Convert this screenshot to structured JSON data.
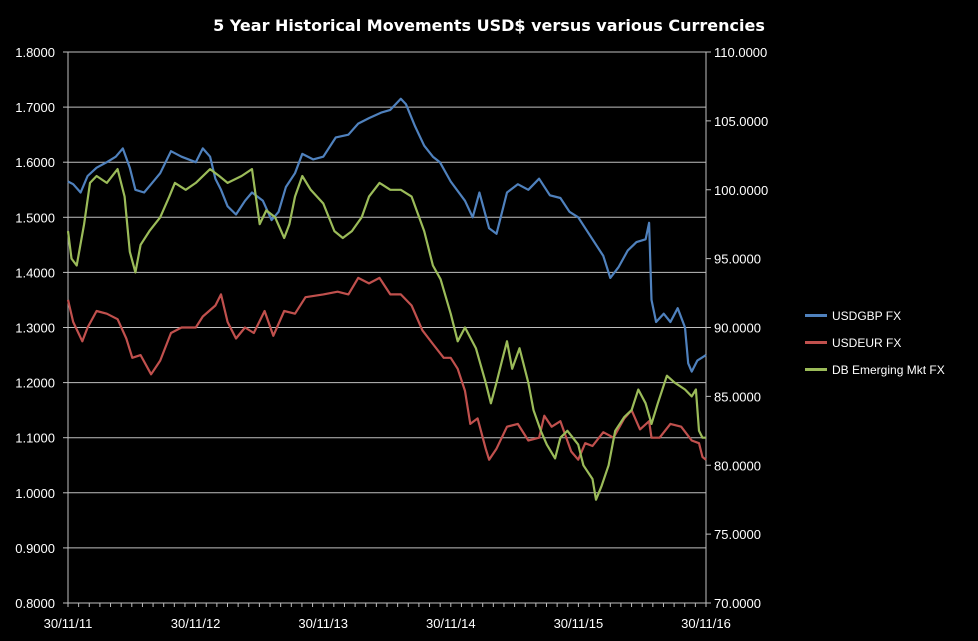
{
  "chart_data": {
    "type": "line",
    "title": "5 Year Historical Movements USD$ versus various Currencies",
    "x_tick_labels": [
      "30/11/11",
      "30/11/12",
      "30/11/13",
      "30/11/14",
      "30/11/15",
      "30/11/16"
    ],
    "y_left": {
      "ticks": [
        "0.8000",
        "0.9000",
        "1.0000",
        "1.1000",
        "1.2000",
        "1.3000",
        "1.4000",
        "1.5000",
        "1.6000",
        "1.7000",
        "1.8000"
      ],
      "range": [
        0.8,
        1.8
      ]
    },
    "y_right": {
      "ticks": [
        "70.0000",
        "75.0000",
        "80.0000",
        "85.0000",
        "90.0000",
        "95.0000",
        "100.0000",
        "105.0000",
        "110.0000"
      ],
      "range": [
        70,
        110
      ]
    },
    "grid": true,
    "legend_position": "right",
    "series": [
      {
        "name": "USDGBP FX",
        "axis": "left",
        "color": "#4f81bd",
        "points": [
          [
            "2011-11-30",
            1.565
          ],
          [
            "2011-12-15",
            1.56
          ],
          [
            "2012-01-05",
            1.545
          ],
          [
            "2012-01-25",
            1.575
          ],
          [
            "2012-02-20",
            1.59
          ],
          [
            "2012-03-20",
            1.6
          ],
          [
            "2012-04-15",
            1.61
          ],
          [
            "2012-05-05",
            1.625
          ],
          [
            "2012-05-25",
            1.59
          ],
          [
            "2012-06-10",
            1.55
          ],
          [
            "2012-07-05",
            1.545
          ],
          [
            "2012-07-25",
            1.56
          ],
          [
            "2012-08-20",
            1.58
          ],
          [
            "2012-09-20",
            1.62
          ],
          [
            "2012-10-20",
            1.61
          ],
          [
            "2012-11-30",
            1.6
          ],
          [
            "2012-12-20",
            1.625
          ],
          [
            "2013-01-10",
            1.61
          ],
          [
            "2013-01-25",
            1.57
          ],
          [
            "2013-02-10",
            1.55
          ],
          [
            "2013-03-01",
            1.52
          ],
          [
            "2013-03-25",
            1.505
          ],
          [
            "2013-04-20",
            1.53
          ],
          [
            "2013-05-10",
            1.545
          ],
          [
            "2013-06-10",
            1.53
          ],
          [
            "2013-07-05",
            1.495
          ],
          [
            "2013-07-25",
            1.51
          ],
          [
            "2013-08-15",
            1.555
          ],
          [
            "2013-09-10",
            1.58
          ],
          [
            "2013-10-01",
            1.615
          ],
          [
            "2013-11-01",
            1.605
          ],
          [
            "2013-11-30",
            1.61
          ],
          [
            "2014-01-05",
            1.645
          ],
          [
            "2014-02-10",
            1.65
          ],
          [
            "2014-03-10",
            1.67
          ],
          [
            "2014-04-10",
            1.68
          ],
          [
            "2014-05-15",
            1.69
          ],
          [
            "2014-06-10",
            1.695
          ],
          [
            "2014-07-10",
            1.715
          ],
          [
            "2014-07-25",
            1.705
          ],
          [
            "2014-08-20",
            1.665
          ],
          [
            "2014-09-15",
            1.63
          ],
          [
            "2014-10-10",
            1.61
          ],
          [
            "2014-10-30",
            1.6
          ],
          [
            "2014-11-30",
            1.565
          ],
          [
            "2015-01-10",
            1.53
          ],
          [
            "2015-02-01",
            1.5
          ],
          [
            "2015-02-20",
            1.545
          ],
          [
            "2015-03-20",
            1.48
          ],
          [
            "2015-04-10",
            1.47
          ],
          [
            "2015-05-10",
            1.545
          ],
          [
            "2015-06-10",
            1.56
          ],
          [
            "2015-07-10",
            1.55
          ],
          [
            "2015-08-10",
            1.57
          ],
          [
            "2015-09-10",
            1.54
          ],
          [
            "2015-10-10",
            1.535
          ],
          [
            "2015-11-05",
            1.51
          ],
          [
            "2015-11-30",
            1.5
          ],
          [
            "2016-01-10",
            1.46
          ],
          [
            "2016-02-10",
            1.43
          ],
          [
            "2016-03-01",
            1.39
          ],
          [
            "2016-03-25",
            1.41
          ],
          [
            "2016-04-20",
            1.44
          ],
          [
            "2016-05-15",
            1.455
          ],
          [
            "2016-06-10",
            1.46
          ],
          [
            "2016-06-20",
            1.49
          ],
          [
            "2016-06-27",
            1.35
          ],
          [
            "2016-07-10",
            1.31
          ],
          [
            "2016-08-01",
            1.325
          ],
          [
            "2016-08-20",
            1.31
          ],
          [
            "2016-09-10",
            1.335
          ],
          [
            "2016-10-01",
            1.3
          ],
          [
            "2016-10-10",
            1.235
          ],
          [
            "2016-10-20",
            1.22
          ],
          [
            "2016-11-05",
            1.24
          ],
          [
            "2016-11-30",
            1.25
          ]
        ]
      },
      {
        "name": "USDEUR FX",
        "axis": "left",
        "color": "#c0504d",
        "points": [
          [
            "2011-11-30",
            1.35
          ],
          [
            "2011-12-15",
            1.31
          ],
          [
            "2012-01-10",
            1.275
          ],
          [
            "2012-01-25",
            1.3
          ],
          [
            "2012-02-20",
            1.33
          ],
          [
            "2012-03-20",
            1.325
          ],
          [
            "2012-04-20",
            1.315
          ],
          [
            "2012-05-15",
            1.28
          ],
          [
            "2012-06-01",
            1.245
          ],
          [
            "2012-06-25",
            1.25
          ],
          [
            "2012-07-25",
            1.215
          ],
          [
            "2012-08-20",
            1.24
          ],
          [
            "2012-09-20",
            1.29
          ],
          [
            "2012-10-20",
            1.3
          ],
          [
            "2012-11-30",
            1.3
          ],
          [
            "2012-12-20",
            1.32
          ],
          [
            "2013-01-25",
            1.34
          ],
          [
            "2013-02-10",
            1.36
          ],
          [
            "2013-03-01",
            1.31
          ],
          [
            "2013-03-25",
            1.28
          ],
          [
            "2013-04-20",
            1.3
          ],
          [
            "2013-05-15",
            1.29
          ],
          [
            "2013-06-15",
            1.33
          ],
          [
            "2013-07-10",
            1.285
          ],
          [
            "2013-08-10",
            1.33
          ],
          [
            "2013-09-10",
            1.325
          ],
          [
            "2013-10-10",
            1.355
          ],
          [
            "2013-11-30",
            1.36
          ],
          [
            "2014-01-10",
            1.365
          ],
          [
            "2014-02-10",
            1.36
          ],
          [
            "2014-03-10",
            1.39
          ],
          [
            "2014-04-10",
            1.38
          ],
          [
            "2014-05-10",
            1.39
          ],
          [
            "2014-06-10",
            1.36
          ],
          [
            "2014-07-10",
            1.36
          ],
          [
            "2014-08-10",
            1.34
          ],
          [
            "2014-09-10",
            1.295
          ],
          [
            "2014-10-10",
            1.27
          ],
          [
            "2014-11-10",
            1.245
          ],
          [
            "2014-11-30",
            1.245
          ],
          [
            "2014-12-20",
            1.225
          ],
          [
            "2015-01-10",
            1.185
          ],
          [
            "2015-01-25",
            1.125
          ],
          [
            "2015-02-15",
            1.135
          ],
          [
            "2015-03-10",
            1.08
          ],
          [
            "2015-03-20",
            1.06
          ],
          [
            "2015-04-10",
            1.08
          ],
          [
            "2015-05-10",
            1.12
          ],
          [
            "2015-06-10",
            1.125
          ],
          [
            "2015-07-10",
            1.095
          ],
          [
            "2015-08-10",
            1.1
          ],
          [
            "2015-08-25",
            1.14
          ],
          [
            "2015-09-15",
            1.12
          ],
          [
            "2015-10-10",
            1.13
          ],
          [
            "2015-11-10",
            1.075
          ],
          [
            "2015-11-30",
            1.06
          ],
          [
            "2015-12-20",
            1.09
          ],
          [
            "2016-01-10",
            1.085
          ],
          [
            "2016-02-10",
            1.11
          ],
          [
            "2016-03-10",
            1.1
          ],
          [
            "2016-04-10",
            1.135
          ],
          [
            "2016-05-01",
            1.15
          ],
          [
            "2016-05-25",
            1.115
          ],
          [
            "2016-06-20",
            1.13
          ],
          [
            "2016-06-27",
            1.1
          ],
          [
            "2016-07-20",
            1.1
          ],
          [
            "2016-08-20",
            1.125
          ],
          [
            "2016-09-20",
            1.12
          ],
          [
            "2016-10-20",
            1.095
          ],
          [
            "2016-11-10",
            1.09
          ],
          [
            "2016-11-20",
            1.065
          ],
          [
            "2016-11-30",
            1.06
          ]
        ]
      },
      {
        "name": "DB Emerging Mkt FX",
        "axis": "right",
        "color": "#9bbb59",
        "points": [
          [
            "2011-11-30",
            97.0
          ],
          [
            "2011-12-10",
            95.0
          ],
          [
            "2011-12-25",
            94.5
          ],
          [
            "2012-01-15",
            97.5
          ],
          [
            "2012-02-01",
            100.5
          ],
          [
            "2012-02-20",
            101.0
          ],
          [
            "2012-03-20",
            100.5
          ],
          [
            "2012-04-20",
            101.5
          ],
          [
            "2012-05-10",
            99.5
          ],
          [
            "2012-05-25",
            95.5
          ],
          [
            "2012-06-10",
            94.0
          ],
          [
            "2012-06-25",
            96.0
          ],
          [
            "2012-07-20",
            97.0
          ],
          [
            "2012-08-20",
            98.0
          ],
          [
            "2012-09-15",
            99.5
          ],
          [
            "2012-10-01",
            100.5
          ],
          [
            "2012-11-01",
            100.0
          ],
          [
            "2012-11-30",
            100.5
          ],
          [
            "2013-01-10",
            101.5
          ],
          [
            "2013-02-05",
            101.0
          ],
          [
            "2013-03-01",
            100.5
          ],
          [
            "2013-04-10",
            101.0
          ],
          [
            "2013-05-10",
            101.5
          ],
          [
            "2013-06-01",
            97.5
          ],
          [
            "2013-06-20",
            98.5
          ],
          [
            "2013-07-15",
            98.0
          ],
          [
            "2013-08-10",
            96.5
          ],
          [
            "2013-08-25",
            97.5
          ],
          [
            "2013-09-10",
            99.5
          ],
          [
            "2013-10-01",
            101.0
          ],
          [
            "2013-10-25",
            100.0
          ],
          [
            "2013-11-30",
            99.0
          ],
          [
            "2014-01-01",
            97.0
          ],
          [
            "2014-01-25",
            96.5
          ],
          [
            "2014-02-20",
            97.0
          ],
          [
            "2014-03-20",
            98.0
          ],
          [
            "2014-04-10",
            99.5
          ],
          [
            "2014-05-10",
            100.5
          ],
          [
            "2014-06-10",
            100.0
          ],
          [
            "2014-07-10",
            100.0
          ],
          [
            "2014-08-10",
            99.5
          ],
          [
            "2014-09-15",
            97.0
          ],
          [
            "2014-10-10",
            94.5
          ],
          [
            "2014-11-01",
            93.5
          ],
          [
            "2014-11-30",
            91.0
          ],
          [
            "2014-12-20",
            89.0
          ],
          [
            "2015-01-10",
            90.0
          ],
          [
            "2015-02-10",
            88.5
          ],
          [
            "2015-03-10",
            86.0
          ],
          [
            "2015-03-25",
            84.5
          ],
          [
            "2015-04-10",
            86.0
          ],
          [
            "2015-04-25",
            87.5
          ],
          [
            "2015-05-10",
            89.0
          ],
          [
            "2015-05-25",
            87.0
          ],
          [
            "2015-06-15",
            88.5
          ],
          [
            "2015-07-10",
            86.0
          ],
          [
            "2015-07-25",
            84.0
          ],
          [
            "2015-08-15",
            82.5
          ],
          [
            "2015-09-01",
            81.5
          ],
          [
            "2015-09-25",
            80.5
          ],
          [
            "2015-10-10",
            82.0
          ],
          [
            "2015-10-30",
            82.5
          ],
          [
            "2015-11-30",
            81.5
          ],
          [
            "2015-12-15",
            80.0
          ],
          [
            "2016-01-10",
            79.0
          ],
          [
            "2016-01-20",
            77.5
          ],
          [
            "2016-02-05",
            78.5
          ],
          [
            "2016-02-25",
            80.0
          ],
          [
            "2016-03-15",
            82.5
          ],
          [
            "2016-04-10",
            83.5
          ],
          [
            "2016-05-01",
            84.0
          ],
          [
            "2016-05-20",
            85.5
          ],
          [
            "2016-06-10",
            84.5
          ],
          [
            "2016-06-27",
            83.0
          ],
          [
            "2016-07-15",
            84.5
          ],
          [
            "2016-08-10",
            86.5
          ],
          [
            "2016-09-01",
            86.0
          ],
          [
            "2016-10-01",
            85.5
          ],
          [
            "2016-10-20",
            85.0
          ],
          [
            "2016-11-01",
            85.5
          ],
          [
            "2016-11-10",
            82.5
          ],
          [
            "2016-11-20",
            82.0
          ],
          [
            "2016-11-30",
            82.0
          ]
        ]
      }
    ]
  }
}
